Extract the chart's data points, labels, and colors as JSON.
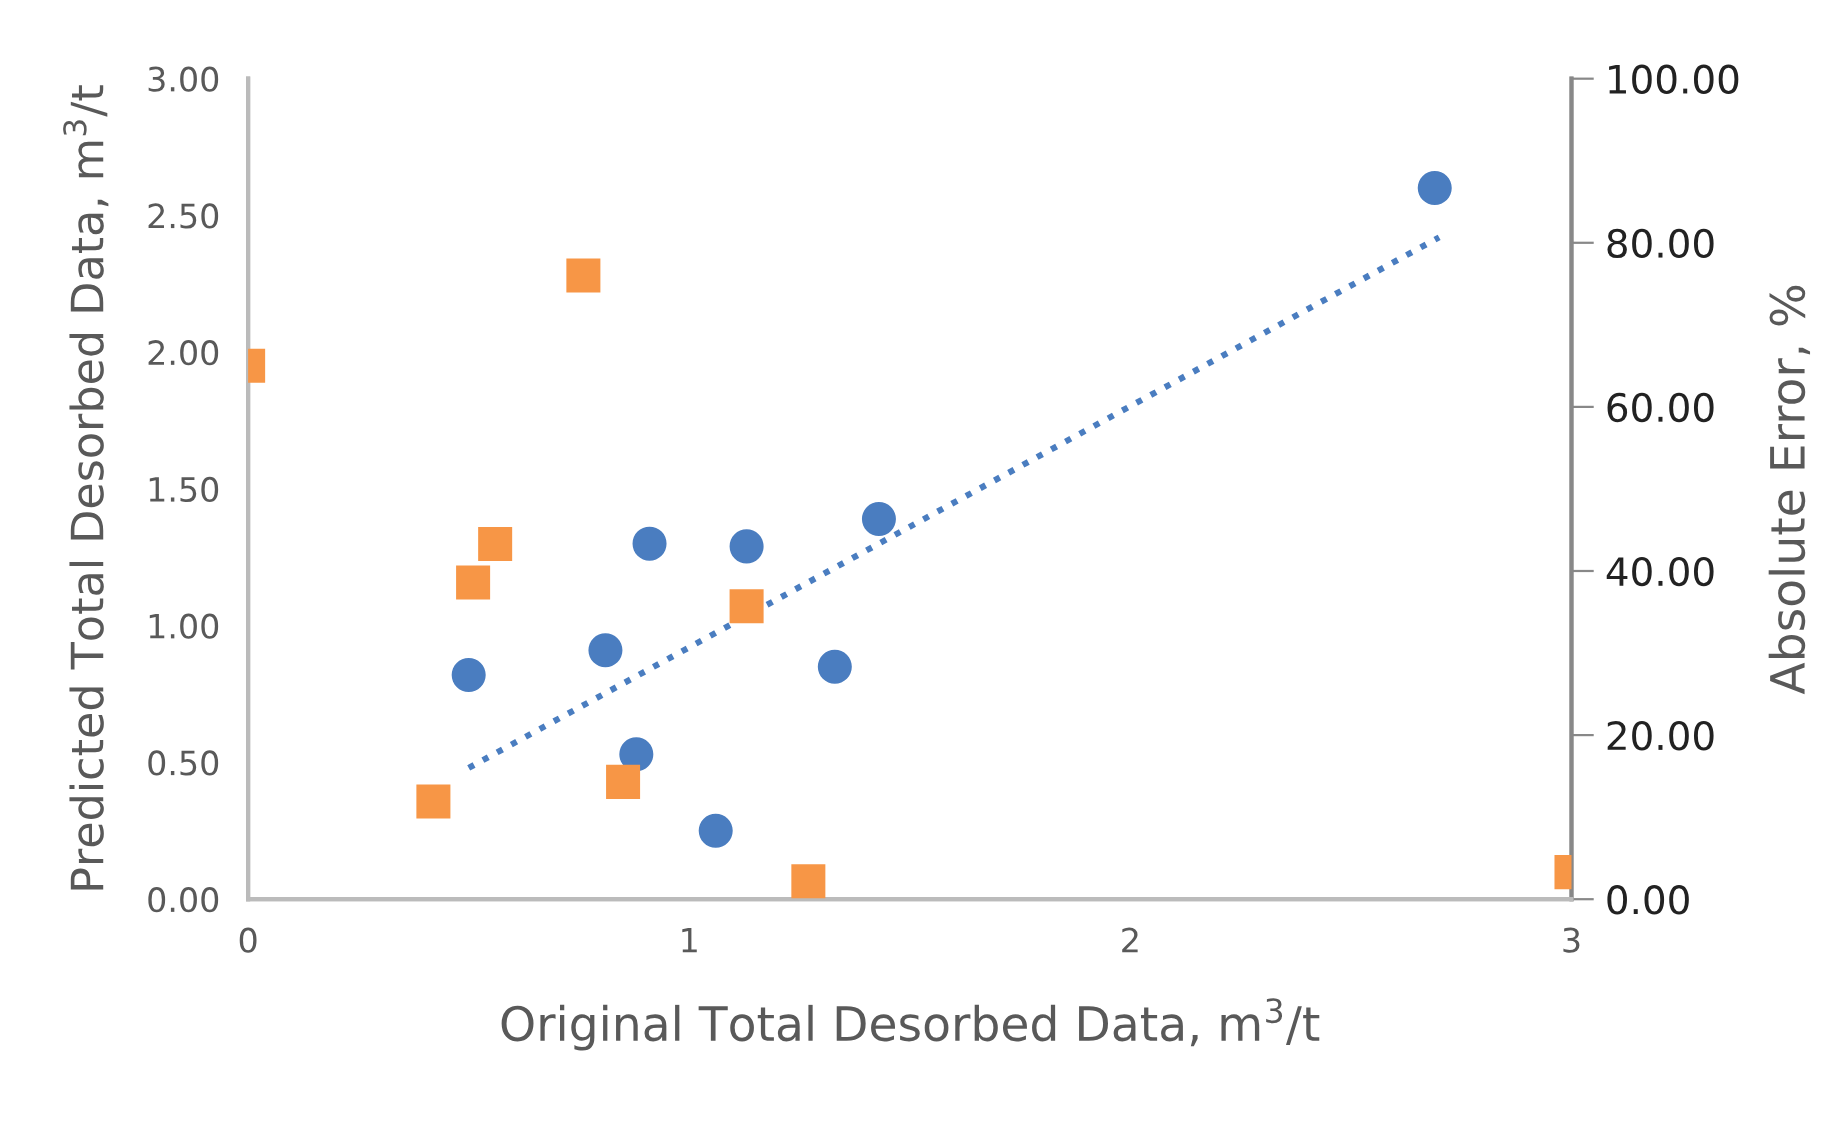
{
  "chart_data": {
    "type": "scatter",
    "xlabel": "Original Total Desorbed Data, m$^{3}$/t",
    "ylabel": "Predicted Total Desorbed Data, m$^{3}$/t",
    "y2label": "Absolute Error, %",
    "xlim": [
      0,
      3
    ],
    "xticks": [
      0,
      1,
      2,
      3
    ],
    "ylim": [
      0,
      3
    ],
    "yticks": [
      {
        "value": 0,
        "label": "0.00"
      },
      {
        "value": 0.5,
        "label": "0.50"
      },
      {
        "value": 1,
        "label": "1.00"
      },
      {
        "value": 1.5,
        "label": "1.50"
      },
      {
        "value": 2,
        "label": "2.00"
      },
      {
        "value": 2.5,
        "label": "2.50"
      },
      {
        "value": 3,
        "label": "3.00"
      }
    ],
    "y2lim": [
      0,
      100
    ],
    "y2ticks": [
      {
        "value": 0,
        "label": "0.00"
      },
      {
        "value": 20,
        "label": "20.00"
      },
      {
        "value": 40,
        "label": "40.00"
      },
      {
        "value": 60,
        "label": "60.00"
      },
      {
        "value": 80,
        "label": "80.00"
      },
      {
        "value": 100,
        "label": "100.00"
      }
    ],
    "grid": false,
    "legend": false,
    "series": [
      {
        "marker": "circle",
        "color": "#4a7dc0",
        "x": [
          0.5,
          0.81,
          0.91,
          0.88,
          1.06,
          1.13,
          1.33,
          1.43,
          2.69
        ],
        "values": [
          0.82,
          0.91,
          1.3,
          0.53,
          0.25,
          1.29,
          0.85,
          1.39,
          2.6
        ]
      },
      {
        "marker": "square",
        "axis": "y2",
        "color": "#f79646",
        "x": [
          0,
          0.76,
          0.56,
          0.51,
          1.13,
          0.42,
          0.85,
          1.27,
          3.0
        ],
        "values": [
          65.0,
          76.0,
          43.3,
          38.6,
          35.7,
          11.9,
          14.3,
          2.2,
          3.3
        ]
      },
      {
        "type": "line",
        "line_style": "dotted",
        "marker": "none",
        "color": "#4a7dc0",
        "x": [
          0.5,
          2.7
        ],
        "values": [
          0.48,
          2.42
        ]
      }
    ]
  }
}
